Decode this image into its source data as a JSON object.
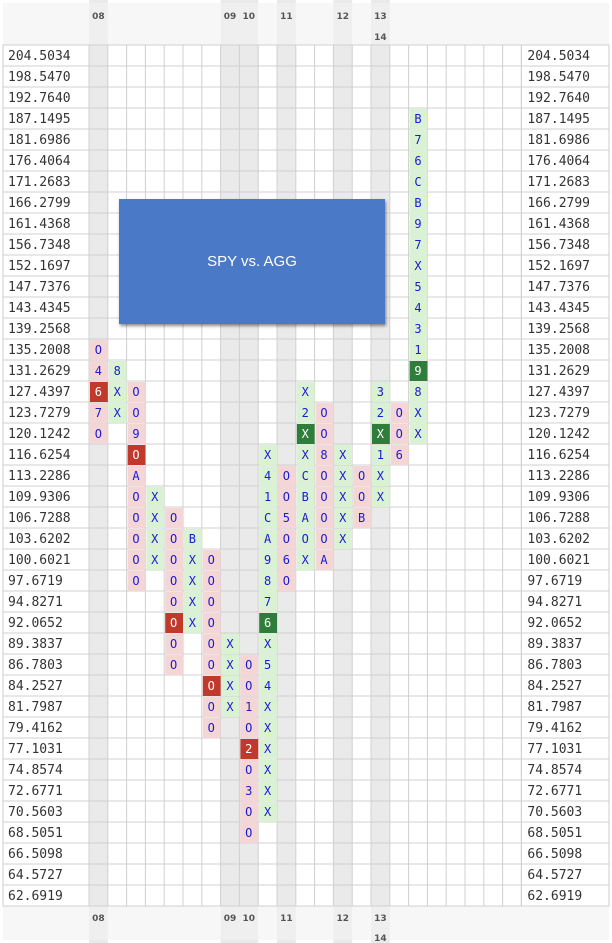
{
  "chart_data": {
    "type": "point-and-figure",
    "title": "SPY vs. AGG",
    "price_levels": [
      "204.5034",
      "198.5470",
      "192.7640",
      "187.1495",
      "181.6986",
      "176.4064",
      "171.2683",
      "166.2799",
      "161.4368",
      "156.7348",
      "152.1697",
      "147.7376",
      "143.4345",
      "139.2568",
      "135.2008",
      "131.2629",
      "127.4397",
      "123.7279",
      "120.1242",
      "116.6254",
      "113.2286",
      "109.9306",
      "106.7288",
      "103.6202",
      "100.6021",
      "97.6719",
      "94.8271",
      "92.0652",
      "89.3837",
      "86.7803",
      "84.2527",
      "81.7987",
      "79.4162",
      "77.1031",
      "74.8574",
      "72.6771",
      "70.5603",
      "68.5051",
      "66.5098",
      "64.5727",
      "62.6919"
    ],
    "year_labels": [
      {
        "col": 0,
        "label": "08"
      },
      {
        "col": 7,
        "label": "09"
      },
      {
        "col": 8,
        "label": "10"
      },
      {
        "col": 10,
        "label": "11"
      },
      {
        "col": 13,
        "label": "12"
      },
      {
        "col": 15,
        "label": "13"
      },
      {
        "col": 15,
        "label": "14",
        "row2": true
      }
    ],
    "columns": [
      {
        "col": 0,
        "type": "O",
        "from": 14,
        "to": 18,
        "marks": {
          "14": "O",
          "15": "4",
          "16": "6",
          "17": "7",
          "18": "O"
        }
      },
      {
        "col": 1,
        "type": "X",
        "from": 15,
        "to": 17,
        "marks": {
          "15": "8",
          "16": "X",
          "17": "X"
        }
      },
      {
        "col": 2,
        "type": "O",
        "from": 16,
        "to": 25,
        "marks": {
          "16": "O",
          "17": "O",
          "18": "9",
          "19": "O",
          "20": "A",
          "21": "O",
          "22": "O",
          "23": "O",
          "24": "O",
          "25": "O"
        }
      },
      {
        "col": 3,
        "type": "X",
        "from": 21,
        "to": 24,
        "marks": {
          "21": "X",
          "22": "X",
          "23": "X",
          "24": "X"
        }
      },
      {
        "col": 4,
        "type": "O",
        "from": 22,
        "to": 29,
        "marks": {
          "22": "O",
          "23": "O",
          "24": "O",
          "25": "O",
          "26": "O",
          "27": "O",
          "28": "O",
          "29": "O"
        }
      },
      {
        "col": 5,
        "type": "X",
        "from": 23,
        "to": 27,
        "marks": {
          "23": "B",
          "24": "X",
          "25": "X",
          "26": "X",
          "27": "X"
        }
      },
      {
        "col": 6,
        "type": "O",
        "from": 24,
        "to": 32,
        "marks": {
          "24": "O",
          "25": "O",
          "26": "O",
          "27": "O",
          "28": "O",
          "29": "O",
          "30": "O",
          "31": "O",
          "32": "O"
        }
      },
      {
        "col": 7,
        "type": "X",
        "from": 28,
        "to": 31,
        "marks": {
          "28": "X",
          "29": "X",
          "30": "X",
          "31": "X"
        }
      },
      {
        "col": 8,
        "type": "O",
        "from": 29,
        "to": 37,
        "marks": {
          "29": "O",
          "30": "O",
          "31": "1",
          "32": "O",
          "33": "2",
          "34": "O",
          "35": "3",
          "36": "O",
          "37": "O"
        }
      },
      {
        "col": 9,
        "type": "X",
        "from": 19,
        "to": 36,
        "marks": {
          "19": "X",
          "20": "4",
          "21": "1",
          "22": "C",
          "23": "A",
          "24": "9",
          "25": "8",
          "26": "7",
          "27": "6",
          "28": "X",
          "29": "5",
          "30": "4",
          "31": "X",
          "32": "X",
          "33": "X",
          "34": "X",
          "35": "X",
          "36": "X"
        }
      },
      {
        "col": 10,
        "type": "O",
        "from": 20,
        "to": 25,
        "marks": {
          "20": "O",
          "21": "O",
          "22": "5",
          "23": "O",
          "24": "6",
          "25": "O"
        }
      },
      {
        "col": 11,
        "type": "X",
        "from": 16,
        "to": 24,
        "marks": {
          "16": "X",
          "17": "2",
          "18": "X",
          "19": "X",
          "20": "C",
          "21": "B",
          "22": "A",
          "23": "O",
          "24": "X"
        }
      },
      {
        "col": 12,
        "type": "O",
        "from": 17,
        "to": 24,
        "marks": {
          "17": "O",
          "18": "O",
          "19": "8",
          "20": "O",
          "21": "O",
          "22": "O",
          "23": "O",
          "24": "A"
        }
      },
      {
        "col": 13,
        "type": "X",
        "from": 19,
        "to": 23,
        "marks": {
          "19": "X",
          "20": "X",
          "21": "X",
          "22": "X",
          "23": "X"
        }
      },
      {
        "col": 14,
        "type": "O",
        "from": 20,
        "to": 22,
        "marks": {
          "20": "O",
          "21": "O",
          "22": "B"
        }
      },
      {
        "col": 15,
        "type": "X",
        "from": 16,
        "to": 21,
        "marks": {
          "16": "3",
          "17": "2",
          "18": "X",
          "19": "1",
          "20": "X",
          "21": "X"
        }
      },
      {
        "col": 16,
        "type": "O",
        "from": 17,
        "to": 19,
        "marks": {
          "17": "O",
          "18": "O",
          "19": "6"
        }
      },
      {
        "col": 17,
        "type": "X",
        "from": 3,
        "to": 18,
        "marks": {
          "3": "B",
          "4": "7",
          "5": "6",
          "6": "C",
          "7": "B",
          "8": "9",
          "9": "7",
          "10": "X",
          "11": "5",
          "12": "4",
          "13": "3",
          "14": "1",
          "15": "9",
          "16": "8",
          "17": "X",
          "18": "X"
        }
      }
    ],
    "signals": [
      {
        "col": 0,
        "row": 16,
        "kind": "sell"
      },
      {
        "col": 2,
        "row": 19,
        "kind": "sell"
      },
      {
        "col": 4,
        "row": 27,
        "kind": "sell"
      },
      {
        "col": 6,
        "row": 30,
        "kind": "sell"
      },
      {
        "col": 8,
        "row": 33,
        "kind": "sell"
      },
      {
        "col": 9,
        "row": 27,
        "kind": "buy"
      },
      {
        "col": 11,
        "row": 18,
        "kind": "buy"
      },
      {
        "col": 15,
        "row": 18,
        "kind": "buy"
      },
      {
        "col": 17,
        "row": 15,
        "kind": "buy"
      }
    ],
    "grid": true,
    "colors": {
      "x": "#1a1ad4",
      "o": "#1a1ad4",
      "buy_bg": "#2f7d3a",
      "sell_bg": "#c0392b",
      "x_fill": "#d9f2d4",
      "o_fill": "#f5d6d6",
      "year_band": "#dcdcdc"
    }
  }
}
